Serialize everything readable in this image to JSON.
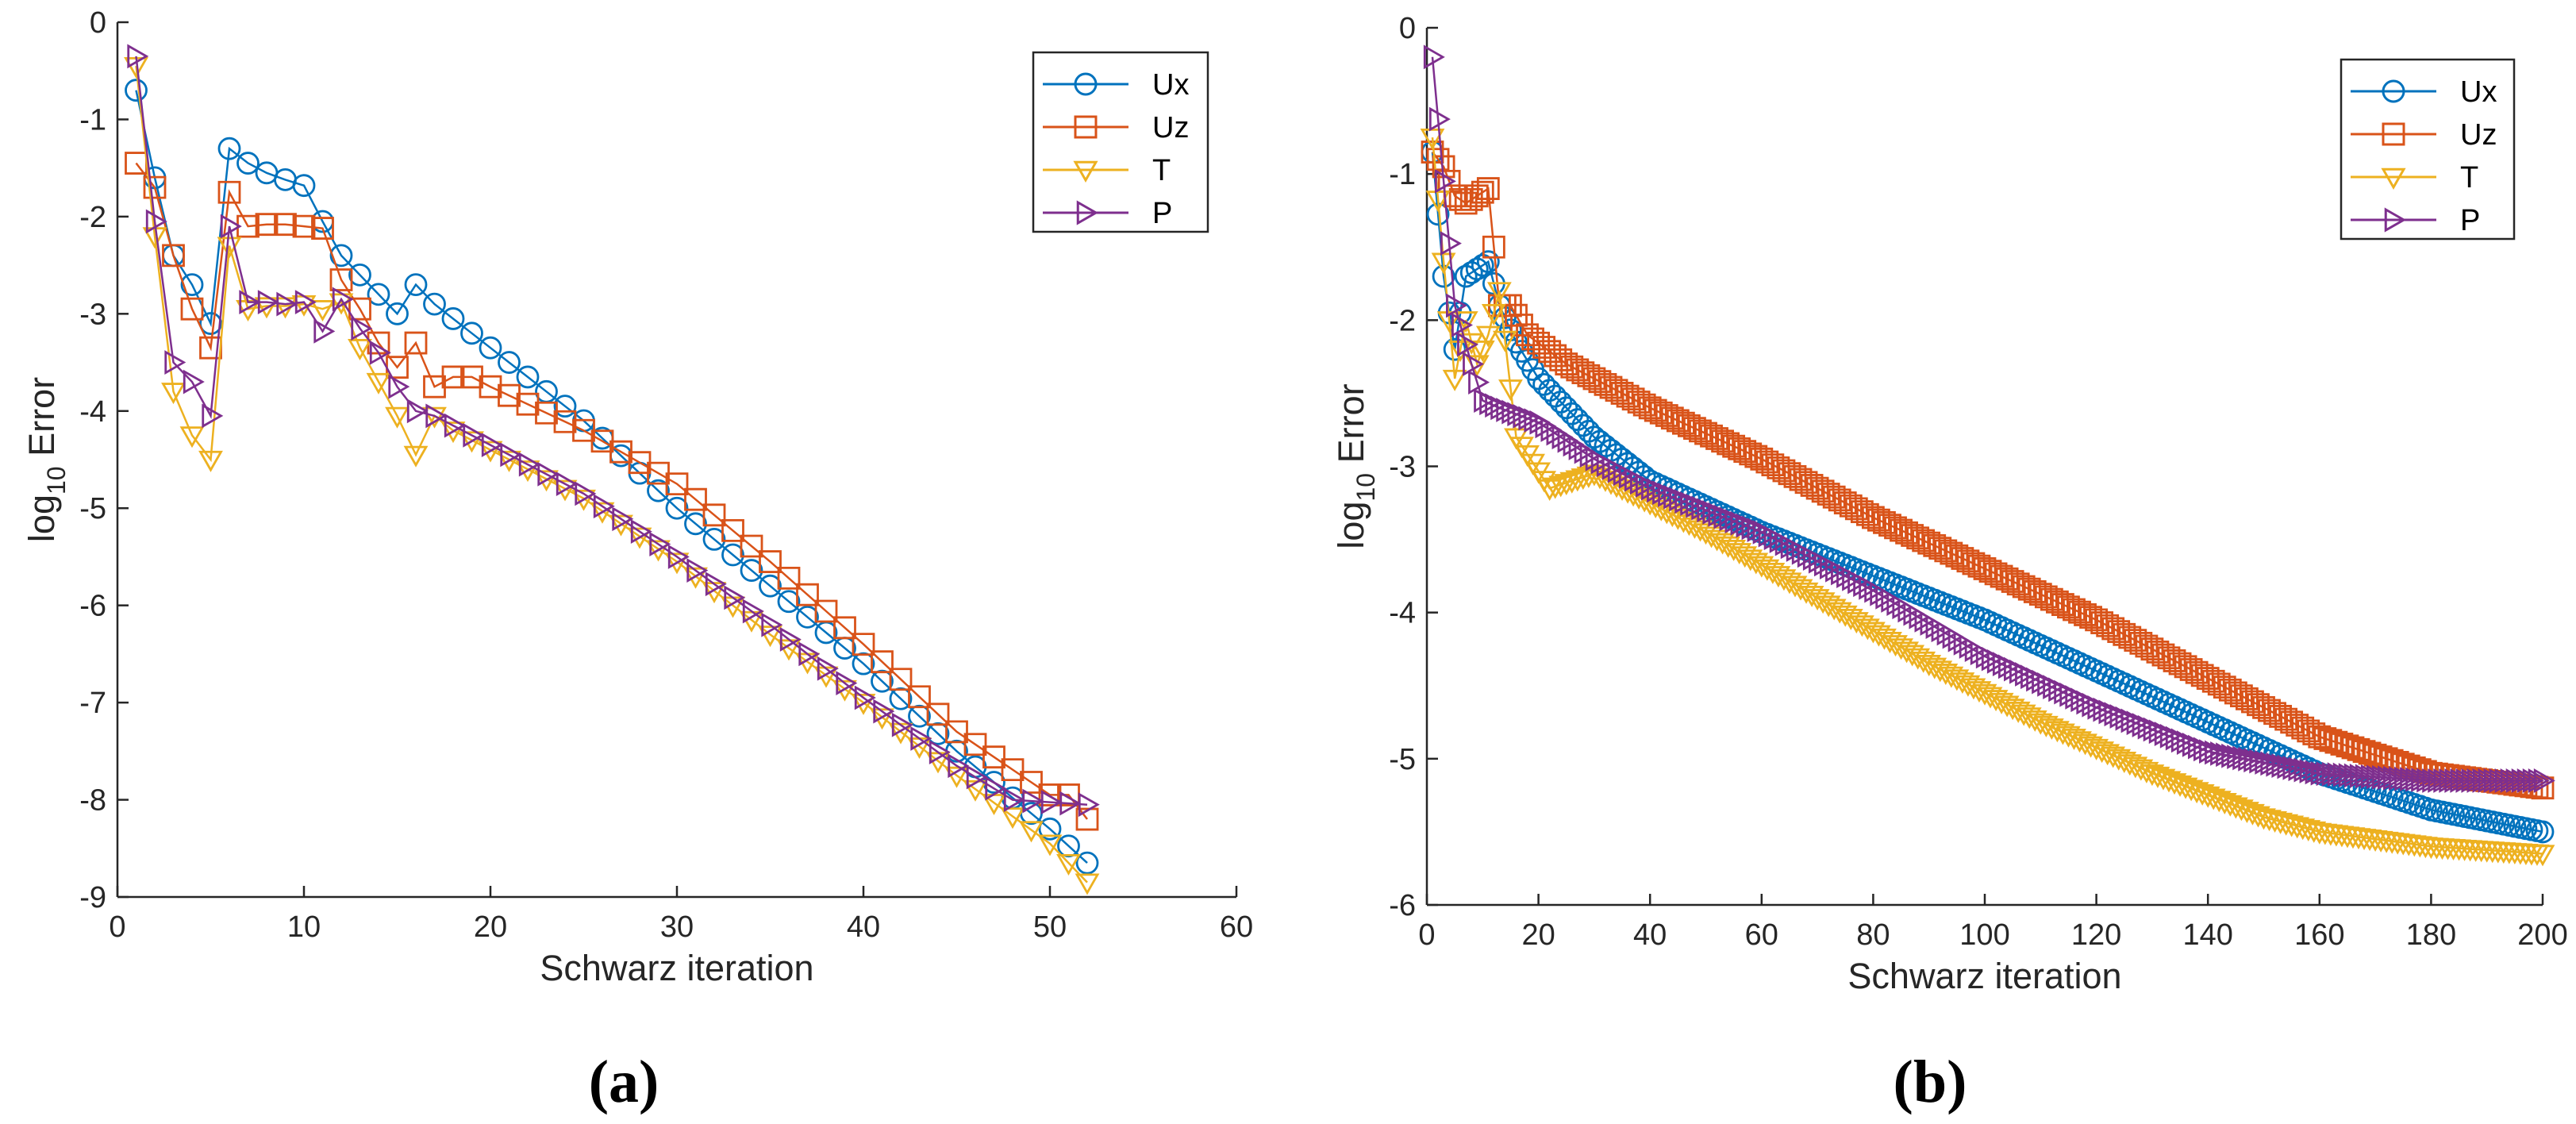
{
  "colors": {
    "Ux": "#0072BD",
    "Uz": "#D95319",
    "T": "#EDB120",
    "P": "#7E2F8E"
  },
  "panels": [
    "(a)",
    "(b)"
  ],
  "chart_data": [
    {
      "type": "line",
      "title": "",
      "panel_label": "(a)",
      "xlabel": "Schwarz iteration",
      "ylabel_main": "log",
      "ylabel_sub": "10",
      "ylabel_tail": " Error",
      "xlim": [
        0,
        60
      ],
      "ylim": [
        -9,
        0
      ],
      "xticks": [
        0,
        10,
        20,
        30,
        40,
        50,
        60
      ],
      "yticks": [
        0,
        -1,
        -2,
        -3,
        -4,
        -5,
        -6,
        -7,
        -8,
        -9
      ],
      "legend_position": "top-right",
      "series": [
        {
          "name": "Ux",
          "marker": "circle",
          "keypoints": [
            [
              1,
              -0.7
            ],
            [
              2,
              -1.6
            ],
            [
              3,
              -2.4
            ],
            [
              4,
              -2.7
            ],
            [
              5,
              -3.1
            ],
            [
              6,
              -1.3
            ],
            [
              7,
              -1.45
            ],
            [
              8,
              -1.55
            ],
            [
              9,
              -1.62
            ],
            [
              10,
              -1.68
            ],
            [
              11,
              -2.05
            ],
            [
              12,
              -2.4
            ],
            [
              13,
              -2.6
            ],
            [
              14,
              -2.8
            ],
            [
              15,
              -3.0
            ],
            [
              16,
              -2.7
            ],
            [
              17,
              -2.9
            ],
            [
              18,
              -3.05
            ],
            [
              25,
              -4.1
            ],
            [
              30,
              -5.0
            ],
            [
              35,
              -5.8
            ],
            [
              40,
              -6.6
            ],
            [
              45,
              -7.5
            ],
            [
              50,
              -8.3
            ],
            [
              52,
              -8.65
            ]
          ]
        },
        {
          "name": "Uz",
          "marker": "square",
          "keypoints": [
            [
              1,
              -1.45
            ],
            [
              2,
              -1.7
            ],
            [
              3,
              -2.4
            ],
            [
              4,
              -2.95
            ],
            [
              5,
              -3.35
            ],
            [
              6,
              -1.75
            ],
            [
              7,
              -2.1
            ],
            [
              8,
              -2.08
            ],
            [
              9,
              -2.08
            ],
            [
              10,
              -2.1
            ],
            [
              11,
              -2.12
            ],
            [
              12,
              -2.65
            ],
            [
              13,
              -2.95
            ],
            [
              14,
              -3.3
            ],
            [
              15,
              -3.55
            ],
            [
              16,
              -3.3
            ],
            [
              17,
              -3.75
            ],
            [
              18,
              -3.65
            ],
            [
              19,
              -3.65
            ],
            [
              20,
              -3.75
            ],
            [
              25,
              -4.2
            ],
            [
              30,
              -4.75
            ],
            [
              35,
              -5.55
            ],
            [
              40,
              -6.4
            ],
            [
              45,
              -7.3
            ],
            [
              50,
              -7.95
            ],
            [
              51,
              -7.95
            ],
            [
              52,
              -8.2
            ]
          ]
        },
        {
          "name": "T",
          "marker": "triangle-down",
          "keypoints": [
            [
              1,
              -0.45
            ],
            [
              2,
              -2.2
            ],
            [
              3,
              -3.8
            ],
            [
              4,
              -4.25
            ],
            [
              5,
              -4.5
            ],
            [
              6,
              -2.3
            ],
            [
              7,
              -2.95
            ],
            [
              8,
              -2.92
            ],
            [
              9,
              -2.92
            ],
            [
              10,
              -2.9
            ],
            [
              11,
              -2.95
            ],
            [
              12,
              -2.88
            ],
            [
              13,
              -3.35
            ],
            [
              14,
              -3.7
            ],
            [
              15,
              -4.05
            ],
            [
              16,
              -4.45
            ],
            [
              17,
              -4.05
            ],
            [
              18,
              -4.2
            ],
            [
              25,
              -4.9
            ],
            [
              30,
              -5.55
            ],
            [
              35,
              -6.3
            ],
            [
              40,
              -7.0
            ],
            [
              45,
              -7.75
            ],
            [
              50,
              -8.45
            ],
            [
              52,
              -8.85
            ]
          ]
        },
        {
          "name": "P",
          "marker": "triangle-right",
          "keypoints": [
            [
              1,
              -0.35
            ],
            [
              2,
              -2.05
            ],
            [
              3,
              -3.5
            ],
            [
              4,
              -3.7
            ],
            [
              5,
              -4.05
            ],
            [
              6,
              -2.1
            ],
            [
              7,
              -2.88
            ],
            [
              8,
              -2.88
            ],
            [
              9,
              -2.9
            ],
            [
              10,
              -2.88
            ],
            [
              11,
              -3.18
            ],
            [
              12,
              -2.85
            ],
            [
              13,
              -3.15
            ],
            [
              14,
              -3.4
            ],
            [
              15,
              -3.75
            ],
            [
              16,
              -4.0
            ],
            [
              17,
              -4.05
            ],
            [
              18,
              -4.15
            ],
            [
              25,
              -4.85
            ],
            [
              30,
              -5.5
            ],
            [
              35,
              -6.2
            ],
            [
              40,
              -6.95
            ],
            [
              45,
              -7.65
            ],
            [
              48,
              -8.0
            ],
            [
              52,
              -8.05
            ]
          ]
        }
      ]
    },
    {
      "type": "line",
      "title": "",
      "panel_label": "(b)",
      "xlabel": "Schwarz iteration",
      "ylabel_main": "log",
      "ylabel_sub": "10",
      "ylabel_tail": " Error",
      "xlim": [
        0,
        200
      ],
      "ylim": [
        -6,
        0
      ],
      "xticks": [
        0,
        20,
        40,
        60,
        80,
        100,
        120,
        140,
        160,
        180,
        200
      ],
      "yticks": [
        0,
        -1,
        -2,
        -3,
        -4,
        -5,
        -6
      ],
      "legend_position": "top-right",
      "series": [
        {
          "name": "Ux",
          "marker": "circle",
          "keypoints": [
            [
              1,
              -0.85
            ],
            [
              3,
              -1.7
            ],
            [
              5,
              -2.2
            ],
            [
              7,
              -1.7
            ],
            [
              9,
              -1.65
            ],
            [
              11,
              -1.6
            ],
            [
              13,
              -1.9
            ],
            [
              16,
              -2.15
            ],
            [
              20,
              -2.4
            ],
            [
              30,
              -2.8
            ],
            [
              40,
              -3.1
            ],
            [
              60,
              -3.45
            ],
            [
              80,
              -3.75
            ],
            [
              100,
              -4.05
            ],
            [
              120,
              -4.4
            ],
            [
              140,
              -4.75
            ],
            [
              160,
              -5.1
            ],
            [
              180,
              -5.35
            ],
            [
              200,
              -5.5
            ]
          ]
        },
        {
          "name": "Uz",
          "marker": "square",
          "keypoints": [
            [
              1,
              -0.85
            ],
            [
              3,
              -0.95
            ],
            [
              5,
              -1.15
            ],
            [
              7,
              -1.2
            ],
            [
              9,
              -1.15
            ],
            [
              11,
              -1.1
            ],
            [
              13,
              -1.9
            ],
            [
              15,
              -1.9
            ],
            [
              18,
              -2.1
            ],
            [
              25,
              -2.3
            ],
            [
              40,
              -2.6
            ],
            [
              60,
              -2.95
            ],
            [
              80,
              -3.35
            ],
            [
              100,
              -3.7
            ],
            [
              120,
              -4.05
            ],
            [
              140,
              -4.45
            ],
            [
              160,
              -4.85
            ],
            [
              180,
              -5.1
            ],
            [
              200,
              -5.2
            ]
          ]
        },
        {
          "name": "T",
          "marker": "triangle-down",
          "keypoints": [
            [
              1,
              -0.75
            ],
            [
              3,
              -1.6
            ],
            [
              5,
              -2.4
            ],
            [
              7,
              -2.0
            ],
            [
              9,
              -2.3
            ],
            [
              11,
              -2.1
            ],
            [
              13,
              -1.8
            ],
            [
              16,
              -2.8
            ],
            [
              22,
              -3.15
            ],
            [
              30,
              -3.05
            ],
            [
              50,
              -3.45
            ],
            [
              70,
              -3.9
            ],
            [
              90,
              -4.35
            ],
            [
              110,
              -4.75
            ],
            [
              130,
              -5.1
            ],
            [
              150,
              -5.4
            ],
            [
              160,
              -5.5
            ],
            [
              180,
              -5.6
            ],
            [
              200,
              -5.65
            ]
          ]
        },
        {
          "name": "P",
          "marker": "triangle-right",
          "keypoints": [
            [
              1,
              -0.2
            ],
            [
              3,
              -1.05
            ],
            [
              5,
              -1.9
            ],
            [
              8,
              -2.3
            ],
            [
              10,
              -2.55
            ],
            [
              13,
              -2.6
            ],
            [
              20,
              -2.7
            ],
            [
              30,
              -2.95
            ],
            [
              40,
              -3.15
            ],
            [
              60,
              -3.45
            ],
            [
              80,
              -3.85
            ],
            [
              100,
              -4.3
            ],
            [
              120,
              -4.65
            ],
            [
              140,
              -4.95
            ],
            [
              160,
              -5.1
            ],
            [
              180,
              -5.15
            ],
            [
              200,
              -5.15
            ]
          ]
        }
      ]
    }
  ]
}
